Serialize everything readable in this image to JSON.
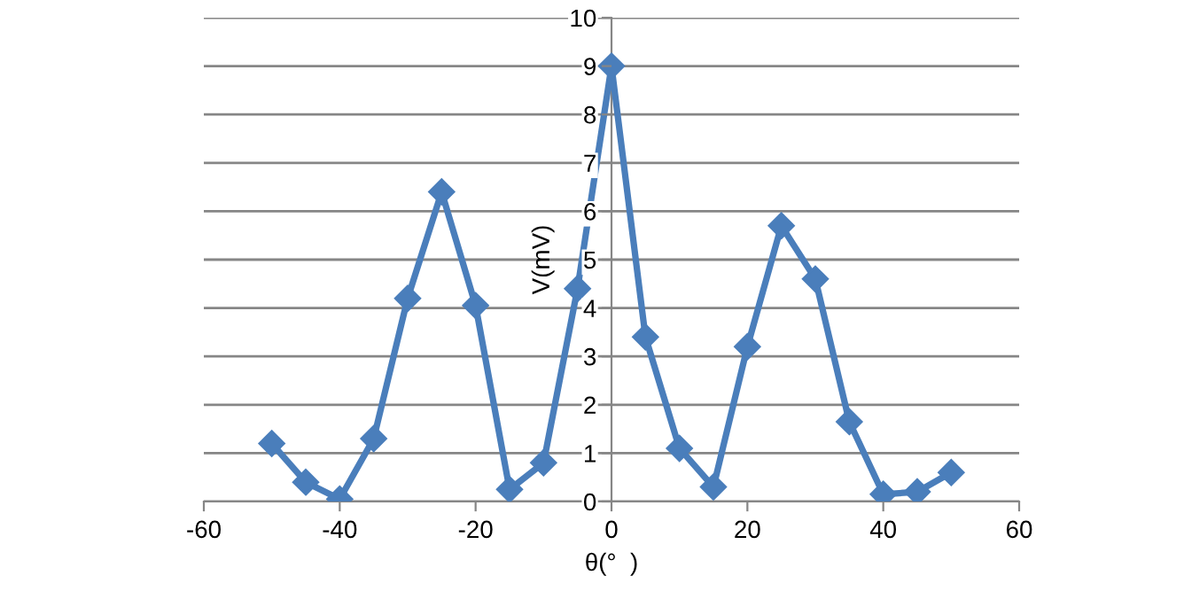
{
  "chart_data": {
    "type": "line",
    "xlabel": "θ(°  )",
    "ylabel": "V(mV)",
    "x": [
      -50,
      -45,
      -40,
      -35,
      -30,
      -25,
      -20,
      -15,
      -10,
      -5,
      0,
      5,
      10,
      15,
      20,
      25,
      30,
      35,
      40,
      45,
      50
    ],
    "series": [
      {
        "color": "#4a7ebb",
        "values": [
          1.2,
          0.4,
          0.05,
          1.3,
          4.2,
          6.4,
          4.05,
          0.25,
          0.8,
          4.4,
          9.0,
          3.4,
          1.1,
          0.3,
          3.2,
          5.7,
          4.6,
          1.65,
          0.15,
          0.2,
          0.6
        ]
      }
    ],
    "xlim": [
      -60,
      60
    ],
    "xticks": [
      -60,
      -40,
      -20,
      0,
      20,
      40,
      60
    ],
    "ylim": [
      0,
      10
    ],
    "yticks": [
      0,
      1,
      2,
      3,
      4,
      5,
      6,
      7,
      8,
      9,
      10
    ],
    "grid": "y",
    "marker": "diamond",
    "line_style": "solid",
    "legend": false
  }
}
